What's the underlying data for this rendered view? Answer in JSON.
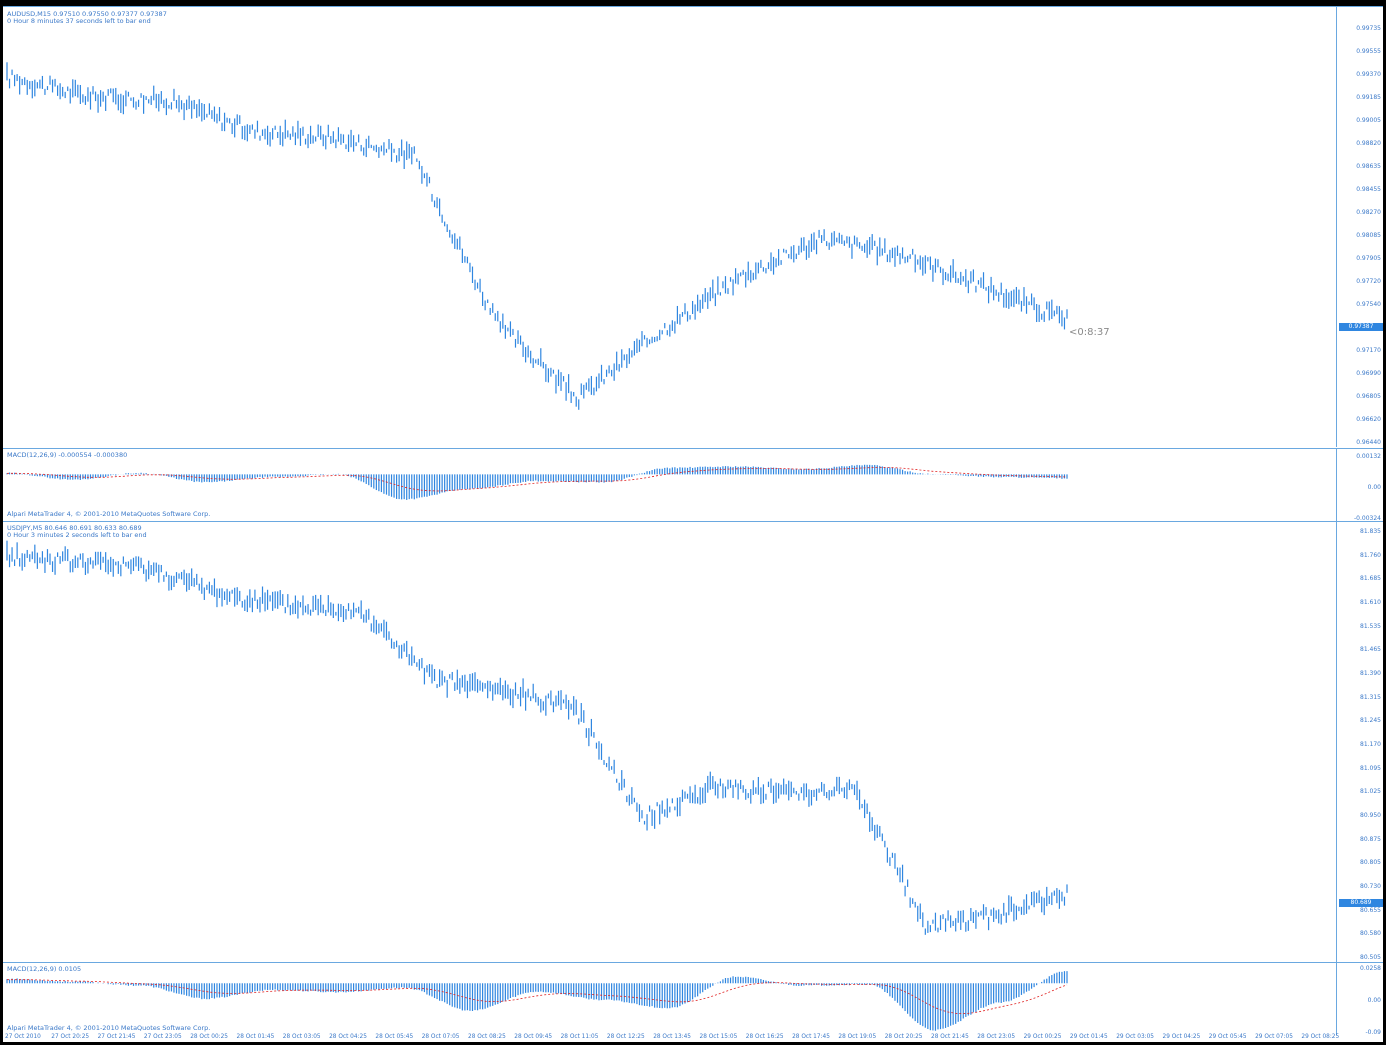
{
  "colors": {
    "accent": "#2f86e0",
    "signal": "#e02020",
    "frame": "#6aa8e0",
    "text": "#3a78c8"
  },
  "top_chart": {
    "header_line1": "AUDUSD,M15  0.97510 0.97550 0.97377 0.97387",
    "header_line2": "0 Hour 8 minutes 37 seconds left to bar end",
    "countdown": "<0:8:37",
    "current_price": "0.97387",
    "price_ticks": [
      "0.99735",
      "0.99555",
      "0.99370",
      "0.99185",
      "0.99005",
      "0.98820",
      "0.98635",
      "0.98455",
      "0.98270",
      "0.98085",
      "0.97905",
      "0.97720",
      "0.97540",
      "0.97355",
      "0.97170",
      "0.96990",
      "0.96805",
      "0.96620",
      "0.96440"
    ]
  },
  "top_macd": {
    "label": "MACD(12,26,9) -0.000554 -0.000380",
    "footer": "Alpari MetaTrader 4, © 2001-2010 MetaQuotes Software Corp.",
    "ticks": [
      "0.00132",
      "0.00",
      "-0.00324"
    ]
  },
  "bottom_chart": {
    "header_line1": "USDJPY,M5  80.646 80.691 80.633 80.689",
    "header_line2": "0 Hour 3 minutes 2 seconds left to bar end",
    "current_price": "80.689",
    "price_ticks": [
      "81.835",
      "81.760",
      "81.685",
      "81.610",
      "81.535",
      "81.465",
      "81.390",
      "81.315",
      "81.245",
      "81.170",
      "81.095",
      "81.025",
      "80.950",
      "80.875",
      "80.805",
      "80.730",
      "80.655",
      "80.580",
      "80.505"
    ]
  },
  "bottom_macd": {
    "label": "MACD(12,26,9) 0.0105",
    "footer": "Alpari MetaTrader 4, © 2001-2010 MetaQuotes Software Corp.",
    "ticks": [
      "0.0258",
      "0.00",
      "-0.09"
    ]
  },
  "time_axis": [
    "27 Oct 2010",
    "27 Oct 20:25",
    "27 Oct 21:45",
    "27 Oct 23:05",
    "28 Oct 00:25",
    "28 Oct 01:45",
    "28 Oct 03:05",
    "28 Oct 04:25",
    "28 Oct 05:45",
    "28 Oct 07:05",
    "28 Oct 08:25",
    "28 Oct 09:45",
    "28 Oct 11:05",
    "28 Oct 12:25",
    "28 Oct 13:45",
    "28 Oct 15:05",
    "28 Oct 16:25",
    "28 Oct 17:45",
    "28 Oct 19:05",
    "28 Oct 20:25",
    "28 Oct 21:45",
    "28 Oct 23:05",
    "29 Oct 00:25",
    "29 Oct 01:45",
    "29 Oct 03:05",
    "29 Oct 04:25",
    "29 Oct 05:45",
    "29 Oct 07:05",
    "29 Oct 08:25"
  ],
  "chart_data": [
    {
      "type": "line",
      "title": "AUDUSD,M15",
      "x": [
        "27 Oct 2010",
        "27 Oct 21:45",
        "28 Oct 00:25",
        "28 Oct 03:05",
        "28 Oct 05:45",
        "28 Oct 07:05",
        "28 Oct 08:25",
        "28 Oct 11:05",
        "28 Oct 13:45",
        "28 Oct 16:25",
        "28 Oct 19:05",
        "28 Oct 21:45",
        "29 Oct 00:25",
        "29 Oct 01:45"
      ],
      "series": [
        {
          "values": [
            0.9937,
            0.9921,
            0.9918,
            0.9893,
            0.9888,
            0.9872,
            0.9738,
            0.9675,
            0.973,
            0.9775,
            0.9805,
            0.9792,
            0.9766,
            0.9739
          ]
        }
      ],
      "ylim": [
        0.9644,
        0.99735
      ]
    },
    {
      "type": "bar",
      "title": "MACD(12,26,9)",
      "series": [
        {
          "values": [
            0.0001,
            -0.0004,
            0.0001,
            -0.0006,
            -0.0002,
            0.0,
            -0.0019,
            -0.0011,
            -0.0005,
            -0.0006,
            0.0005,
            0.0006,
            0.0004,
            0.0007,
            0.0,
            -0.0002,
            -0.0003
          ]
        }
      ],
      "ylim": [
        -0.00324,
        0.00132
      ]
    },
    {
      "type": "line",
      "title": "USDJPY,M5",
      "x": [
        "27 Oct 2010",
        "27 Oct 21:45",
        "28 Oct 00:25",
        "28 Oct 03:05",
        "28 Oct 05:45",
        "28 Oct 07:05",
        "28 Oct 08:25",
        "28 Oct 11:05",
        "28 Oct 13:45",
        "28 Oct 15:05",
        "28 Oct 17:45",
        "28 Oct 21:45",
        "29 Oct 00:25",
        "29 Oct 03:05",
        "29 Oct 05:45",
        "29 Oct 08:25"
      ],
      "series": [
        {
          "values": [
            81.76,
            81.74,
            81.72,
            81.64,
            81.6,
            81.59,
            81.37,
            81.33,
            81.29,
            80.93,
            81.03,
            81.01,
            81.02,
            80.59,
            80.62,
            80.69
          ]
        }
      ],
      "ylim": [
        80.505,
        81.835
      ]
    },
    {
      "type": "bar",
      "title": "MACD(12,26,9)",
      "series": [
        {
          "values": [
            0.008,
            0.003,
            -0.004,
            -0.028,
            -0.012,
            -0.016,
            -0.008,
            -0.05,
            -0.015,
            -0.03,
            -0.045,
            0.012,
            -0.004,
            -0.002,
            -0.085,
            -0.035,
            0.022
          ]
        }
      ],
      "ylim": [
        -0.09,
        0.0258
      ]
    }
  ]
}
